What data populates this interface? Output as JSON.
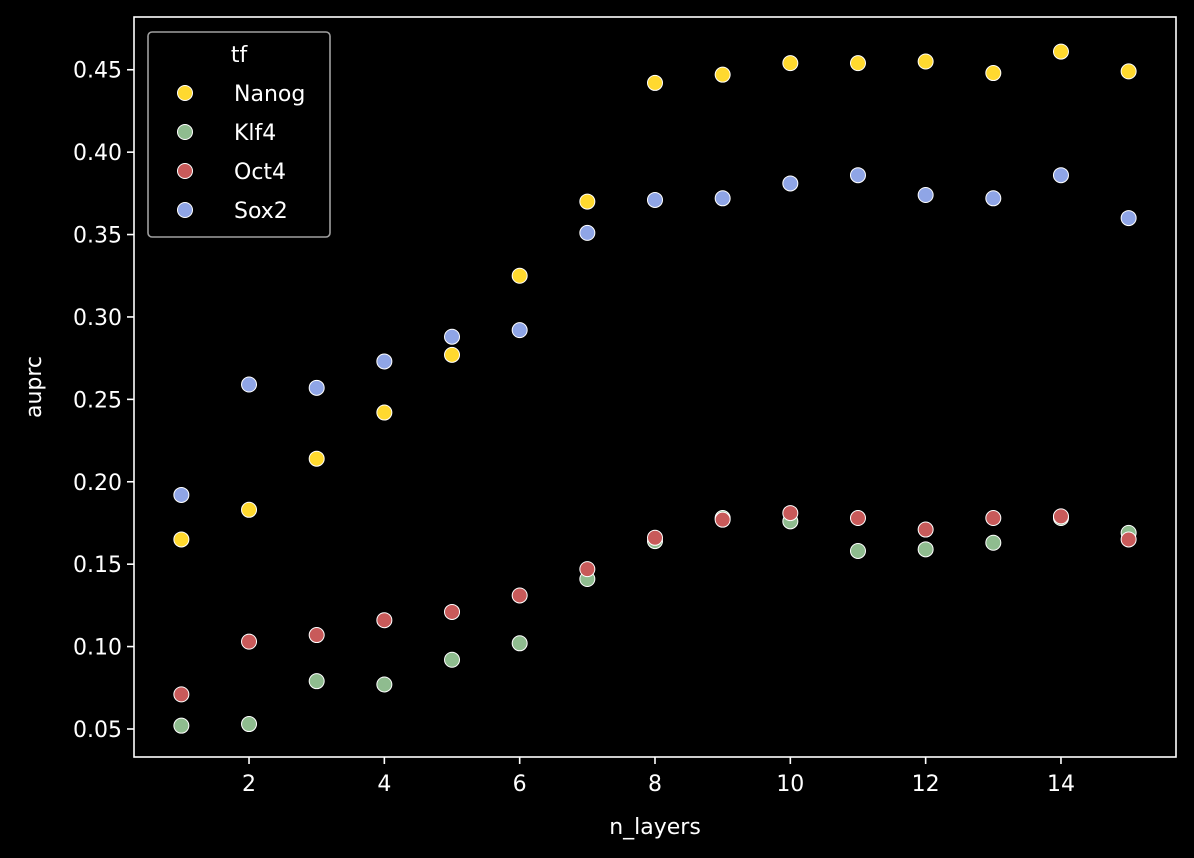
{
  "chart_data": {
    "type": "scatter",
    "xlabel": "n_layers",
    "ylabel": "auprc",
    "xlim": [
      0.3,
      15.7
    ],
    "ylim": [
      0.033,
      0.482
    ],
    "xticks": [
      2,
      4,
      6,
      8,
      10,
      12,
      14
    ],
    "yticks": [
      0.05,
      0.1,
      0.15,
      0.2,
      0.25,
      0.3,
      0.35,
      0.4,
      0.45
    ],
    "background": "#000000",
    "axes_color": "#ffffff",
    "grid": false,
    "legend": {
      "title": "tf",
      "placement": "top-left"
    },
    "x": [
      1,
      2,
      3,
      4,
      5,
      6,
      7,
      8,
      9,
      10,
      11,
      12,
      13,
      14,
      15
    ],
    "series": [
      {
        "name": "Nanog",
        "color": "#ffd92f",
        "values": [
          0.165,
          0.183,
          0.214,
          0.242,
          0.277,
          0.325,
          0.37,
          0.442,
          0.447,
          0.454,
          0.454,
          0.455,
          0.448,
          0.461,
          0.449
        ]
      },
      {
        "name": "Klf4",
        "color": "#8fbc8f",
        "values": [
          0.052,
          0.053,
          0.079,
          0.077,
          0.092,
          0.102,
          0.141,
          0.164,
          0.178,
          0.176,
          0.158,
          0.159,
          0.163,
          0.178,
          0.169
        ]
      },
      {
        "name": "Oct4",
        "color": "#c85a5a",
        "values": [
          0.071,
          0.103,
          0.107,
          0.116,
          0.121,
          0.131,
          0.147,
          0.166,
          0.177,
          0.181,
          0.178,
          0.171,
          0.178,
          0.179,
          0.165
        ]
      },
      {
        "name": "Sox2",
        "color": "#8fa5e6",
        "values": [
          0.192,
          0.259,
          0.257,
          0.273,
          0.288,
          0.292,
          0.351,
          0.371,
          0.372,
          0.381,
          0.386,
          0.374,
          0.372,
          0.386,
          0.36
        ]
      }
    ]
  }
}
